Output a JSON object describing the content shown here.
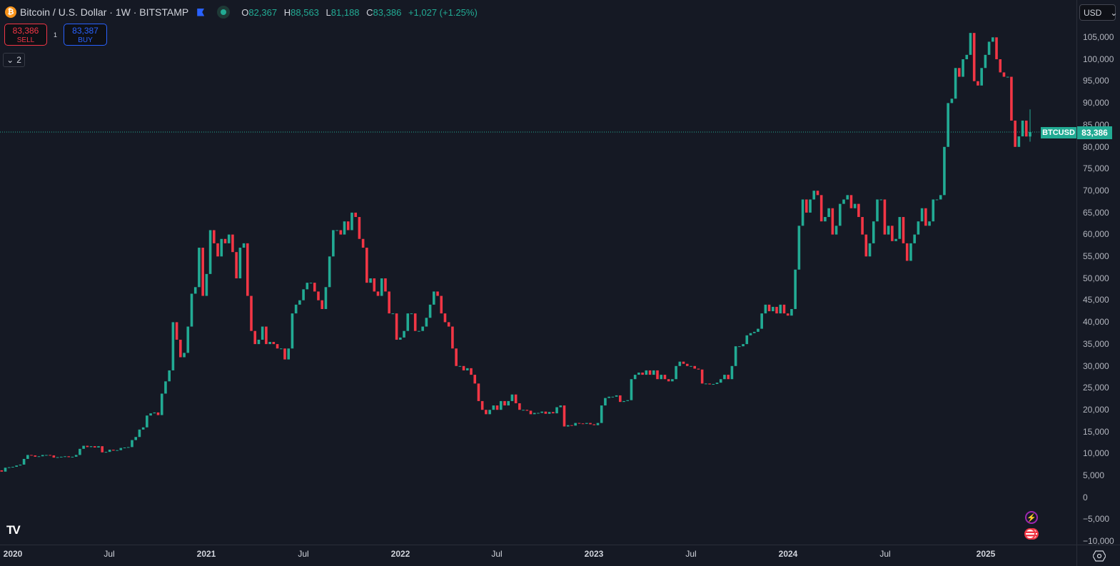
{
  "header": {
    "symbol_icon": "bitcoin-icon",
    "title": "Bitcoin / U.S. Dollar · 1W · BITSTAMP",
    "ohlc": {
      "o_label": "O",
      "o": "82,367",
      "h_label": "H",
      "h": "88,563",
      "l_label": "L",
      "l": "81,188",
      "c_label": "C",
      "c": "83,386",
      "change": "+1,027 (+1.25%)"
    }
  },
  "trade": {
    "sell_price": "83,386",
    "sell_label": "SELL",
    "spread": "1",
    "buy_price": "83,387",
    "buy_label": "BUY"
  },
  "indicators_toggle": {
    "count": "2"
  },
  "currency": "USD",
  "last_price": {
    "symbol": "BTCUSD",
    "value": "83,386"
  },
  "colors": {
    "up": "#22ab94",
    "down": "#f23645",
    "background": "#151924"
  },
  "chart_data": {
    "type": "candlestick",
    "interval": "1W",
    "price_axis": {
      "labels": [
        "105,000",
        "100,000",
        "95,000",
        "90,000",
        "85,000",
        "80,000",
        "75,000",
        "70,000",
        "65,000",
        "60,000",
        "55,000",
        "50,000",
        "45,000",
        "40,000",
        "35,000",
        "30,000",
        "25,000",
        "20,000",
        "15,000",
        "10,000",
        "5,000",
        "0",
        "−5,000",
        "−10,000"
      ],
      "range": [
        -11000,
        110000
      ]
    },
    "time_axis": {
      "labels": [
        "2020",
        "Jul",
        "2021",
        "Jul",
        "2022",
        "Jul",
        "2023",
        "Jul",
        "2024",
        "Jul",
        "2025"
      ]
    },
    "last_candle": {
      "open": 82367,
      "high": 88563,
      "low": 81188,
      "close": 83386
    },
    "weekly_closes": [
      7200,
      7300,
      7400,
      7800,
      8100,
      8300,
      8600,
      8800,
      9300,
      9600,
      9900,
      10100,
      9700,
      9600,
      8700,
      8000,
      7900,
      5200,
      6200,
      5900,
      6800,
      6900,
      7000,
      7300,
      7500,
      8800,
      9700,
      9600,
      9300,
      9400,
      9700,
      9700,
      9600,
      9100,
      9200,
      9300,
      9400,
      9200,
      9300,
      9700,
      11100,
      11800,
      11500,
      11700,
      11400,
      11700,
      10300,
      10400,
      10900,
      10700,
      10800,
      11300,
      11400,
      11500,
      13100,
      13800,
      15500,
      16000,
      18700,
      19200,
      19400,
      18800,
      23700,
      26500,
      29000,
      40000,
      36000,
      32000,
      33000,
      39000,
      46500,
      48000,
      57000,
      46000,
      51000,
      61000,
      58000,
      55000,
      59000,
      58000,
      60000,
      56000,
      50000,
      57000,
      58000,
      46000,
      38000,
      35000,
      36000,
      39000,
      35000,
      35500,
      35000,
      34000,
      34000,
      31500,
      34000,
      42000,
      44000,
      45000,
      47500,
      49000,
      49000,
      47000,
      45000,
      43000,
      48000,
      55000,
      61000,
      61000,
      60000,
      63000,
      61000,
      65000,
      64000,
      59000,
      57000,
      49000,
      50000,
      47000,
      46000,
      50000,
      47000,
      42000,
      42000,
      36000,
      36500,
      38000,
      42000,
      42000,
      38000,
      38000,
      39000,
      41000,
      44000,
      47000,
      46000,
      42000,
      40000,
      39000,
      34000,
      30000,
      30000,
      29000,
      29500,
      28000,
      26000,
      22000,
      20000,
      19000,
      20000,
      21000,
      20000,
      22000,
      21000,
      22000,
      23500,
      21500,
      20000,
      20000,
      19800,
      19000,
      19300,
      19300,
      19600,
      19100,
      19500,
      19200,
      20600,
      21000,
      16200,
      16500,
      16400,
      17000,
      16900,
      16800,
      17000,
      16700,
      16500,
      17000,
      21000,
      22700,
      23000,
      23000,
      23300,
      21800,
      22000,
      22200,
      27000,
      28000,
      28500,
      28000,
      29000,
      28000,
      29000,
      27000,
      28000,
      27000,
      26500,
      27000,
      30000,
      31000,
      30500,
      30000,
      30000,
      29400,
      29200,
      26000,
      26000,
      25800,
      25900,
      26200,
      27000,
      28000,
      27000,
      30000,
      34500,
      34500,
      35000,
      37000,
      37500,
      37800,
      38500,
      42000,
      44000,
      42500,
      43500,
      42000,
      44000,
      42000,
      41500,
      43000,
      52000,
      62000,
      68000,
      65000,
      68000,
      70000,
      69000,
      63000,
      64000,
      66000,
      60000,
      62000,
      67000,
      68000,
      69000,
      66000,
      67000,
      64000,
      60000,
      55000,
      58000,
      63000,
      68000,
      68000,
      60000,
      62000,
      58500,
      59000,
      64000,
      58000,
      54000,
      58000,
      60000,
      63000,
      66000,
      62000,
      63000,
      68000,
      68000,
      69000,
      80000,
      90000,
      91000,
      98000,
      96000,
      100000,
      101000,
      106000,
      95000,
      94000,
      98000,
      101000,
      104000,
      105000,
      100000,
      97000,
      96000,
      96000,
      86000,
      80000,
      82400,
      86000,
      82367,
      83386
    ]
  }
}
